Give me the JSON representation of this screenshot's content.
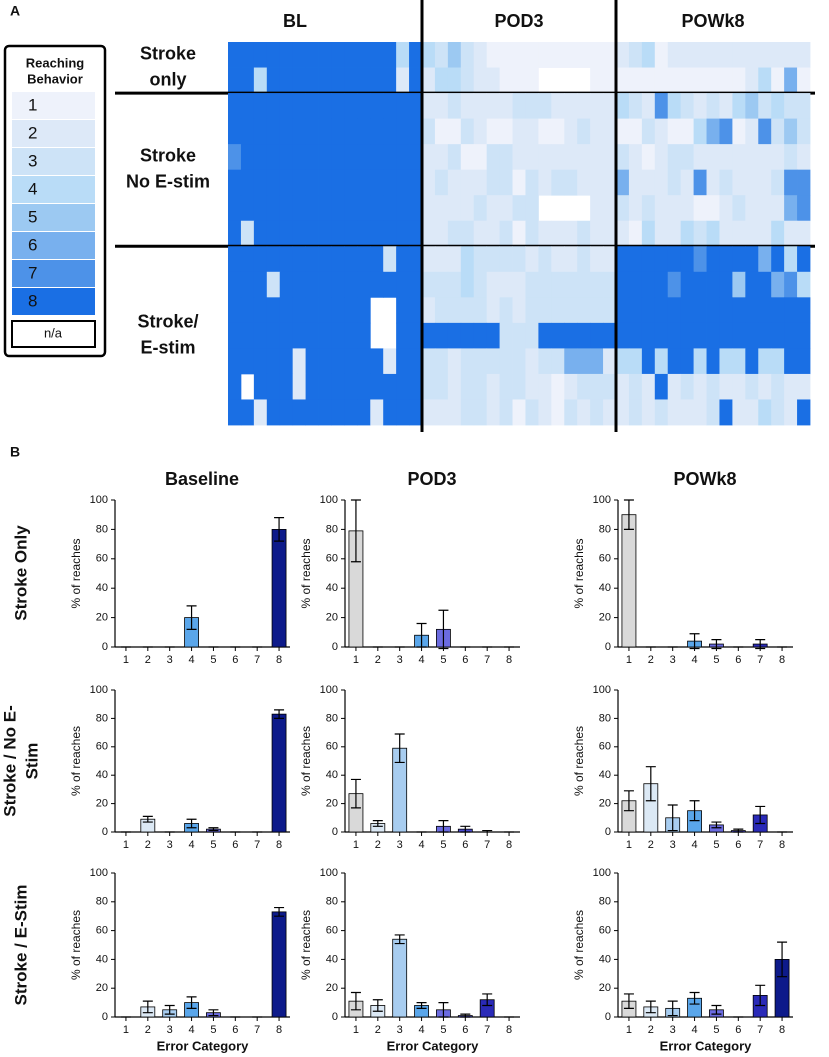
{
  "panel_labels": [
    "A",
    "B"
  ],
  "panel_b": {
    "columns": [
      "Baseline",
      "POD3",
      "POWk8"
    ],
    "rows": [
      [
        "Stroke Only"
      ],
      [
        "Stroke / No E-",
        "Stim"
      ],
      [
        "Stroke / E-Stim"
      ]
    ]
  },
  "chart_data": [
    {
      "type": "heatmap",
      "columns": [
        "BL",
        "POD3",
        "POWk8"
      ],
      "legend_title": [
        "Reaching",
        "Behavior"
      ],
      "levels": [
        1,
        2,
        3,
        4,
        5,
        6,
        7,
        8
      ],
      "colors": [
        "#eef2fb",
        "#dde9f8",
        "#cde3f7",
        "#b9dcf7",
        "#9cc9f2",
        "#78b0ee",
        "#4d92e8",
        "#1a6fe4"
      ],
      "na_label": "n/a",
      "groups": [
        {
          "label": [
            "Stroke",
            "only"
          ],
          "values": [
            [
              8,
              8,
              8,
              8,
              8,
              8,
              8,
              8,
              8,
              8,
              8,
              8,
              8,
              4,
              8,
              4,
              3,
              5,
              3,
              2,
              1,
              1,
              1,
              1,
              1,
              1,
              1,
              1,
              1,
              1,
              2,
              3,
              4,
              1,
              2,
              2,
              2,
              2,
              2,
              2,
              2,
              2,
              2,
              2,
              2
            ],
            [
              8,
              8,
              4,
              8,
              8,
              8,
              8,
              8,
              8,
              8,
              8,
              8,
              8,
              2,
              8,
              2,
              4,
              4,
              3,
              2,
              2,
              1,
              1,
              1,
              null,
              null,
              null,
              null,
              1,
              1,
              1,
              1,
              1,
              1,
              1,
              1,
              1,
              1,
              1,
              1,
              2,
              4,
              1,
              6,
              1
            ]
          ]
        },
        {
          "label": [
            "Stroke",
            "No E-stim"
          ],
          "values": [
            [
              8,
              8,
              8,
              8,
              8,
              8,
              8,
              8,
              8,
              8,
              8,
              8,
              8,
              8,
              8,
              2,
              2,
              3,
              2,
              2,
              2,
              2,
              3,
              3,
              3,
              2,
              2,
              2,
              2,
              2,
              4,
              3,
              2,
              7,
              4,
              3,
              2,
              3,
              2,
              4,
              5,
              3,
              4,
              3,
              3
            ],
            [
              8,
              8,
              8,
              8,
              8,
              8,
              8,
              8,
              8,
              8,
              8,
              8,
              8,
              8,
              8,
              3,
              1,
              1,
              3,
              2,
              1,
              1,
              2,
              2,
              1,
              1,
              2,
              3,
              2,
              2,
              1,
              1,
              3,
              2,
              1,
              1,
              4,
              6,
              7,
              1,
              2,
              7,
              3,
              5,
              3
            ],
            [
              7,
              8,
              8,
              8,
              8,
              8,
              8,
              8,
              8,
              8,
              8,
              8,
              8,
              8,
              8,
              2,
              2,
              3,
              1,
              1,
              3,
              3,
              2,
              2,
              2,
              2,
              2,
              2,
              2,
              2,
              3,
              2,
              1,
              2,
              3,
              3,
              2,
              2,
              2,
              2,
              2,
              2,
              2,
              3,
              2
            ],
            [
              8,
              8,
              8,
              8,
              8,
              8,
              8,
              8,
              8,
              8,
              8,
              8,
              8,
              8,
              8,
              2,
              3,
              2,
              2,
              2,
              3,
              3,
              1,
              3,
              2,
              3,
              3,
              2,
              2,
              2,
              6,
              2,
              2,
              2,
              3,
              2,
              7,
              2,
              3,
              2,
              2,
              2,
              3,
              7,
              7
            ],
            [
              8,
              8,
              8,
              8,
              8,
              8,
              8,
              8,
              8,
              8,
              8,
              8,
              8,
              8,
              8,
              2,
              2,
              2,
              2,
              3,
              2,
              2,
              3,
              3,
              null,
              null,
              null,
              null,
              2,
              2,
              3,
              2,
              3,
              2,
              2,
              2,
              1,
              1,
              2,
              3,
              2,
              2,
              2,
              6,
              7
            ],
            [
              8,
              3,
              8,
              8,
              8,
              8,
              8,
              8,
              8,
              8,
              8,
              8,
              8,
              8,
              8,
              2,
              2,
              3,
              3,
              2,
              2,
              3,
              1,
              3,
              2,
              2,
              2,
              3,
              2,
              2,
              2,
              1,
              4,
              2,
              2,
              4,
              3,
              4,
              2,
              2,
              2,
              2,
              4,
              2,
              2
            ]
          ]
        },
        {
          "label": [
            "Stroke/",
            "E-stim"
          ],
          "values": [
            [
              8,
              8,
              8,
              8,
              8,
              8,
              8,
              8,
              8,
              8,
              8,
              8,
              3,
              8,
              8,
              2,
              2,
              2,
              4,
              3,
              3,
              3,
              3,
              2,
              3,
              2,
              2,
              3,
              2,
              2,
              8,
              8,
              8,
              8,
              8,
              8,
              7,
              8,
              8,
              8,
              8,
              6,
              8,
              4,
              8
            ],
            [
              8,
              8,
              8,
              3,
              8,
              8,
              8,
              8,
              8,
              8,
              8,
              8,
              8,
              8,
              8,
              3,
              3,
              3,
              4,
              3,
              2,
              2,
              2,
              3,
              3,
              3,
              3,
              3,
              3,
              3,
              8,
              8,
              8,
              8,
              7,
              8,
              8,
              8,
              8,
              5,
              8,
              8,
              6,
              7,
              4
            ],
            [
              8,
              8,
              8,
              8,
              8,
              8,
              8,
              8,
              8,
              8,
              8,
              null,
              null,
              8,
              8,
              2,
              3,
              3,
              3,
              3,
              2,
              3,
              2,
              3,
              3,
              3,
              3,
              3,
              3,
              3,
              8,
              8,
              8,
              8,
              8,
              8,
              8,
              8,
              8,
              8,
              8,
              8,
              8,
              8,
              8
            ],
            [
              8,
              8,
              8,
              8,
              8,
              8,
              8,
              8,
              8,
              8,
              8,
              null,
              null,
              8,
              8,
              8,
              8,
              8,
              8,
              8,
              8,
              3,
              3,
              3,
              8,
              8,
              8,
              8,
              8,
              8,
              8,
              8,
              8,
              8,
              8,
              8,
              8,
              8,
              8,
              8,
              8,
              8,
              8,
              8,
              8
            ],
            [
              8,
              8,
              8,
              8,
              8,
              2,
              8,
              8,
              8,
              8,
              8,
              8,
              2,
              8,
              8,
              3,
              3,
              2,
              3,
              3,
              3,
              3,
              3,
              2,
              3,
              3,
              6,
              6,
              6,
              2,
              4,
              4,
              8,
              4,
              8,
              8,
              4,
              8,
              4,
              4,
              8,
              4,
              4,
              8,
              8
            ],
            [
              8,
              null,
              8,
              8,
              8,
              2,
              8,
              8,
              8,
              8,
              8,
              8,
              8,
              8,
              8,
              3,
              3,
              2,
              3,
              3,
              2,
              3,
              3,
              2,
              2,
              1,
              2,
              3,
              3,
              3,
              2,
              3,
              2,
              8,
              2,
              3,
              2,
              3,
              2,
              2,
              3,
              2,
              3,
              2,
              2
            ],
            [
              8,
              8,
              2,
              8,
              8,
              8,
              8,
              8,
              8,
              8,
              8,
              2,
              8,
              8,
              8,
              2,
              2,
              2,
              3,
              3,
              2,
              3,
              1,
              3,
              2,
              1,
              3,
              2,
              3,
              2,
              2,
              3,
              2,
              3,
              2,
              2,
              2,
              3,
              8,
              2,
              2,
              4,
              3,
              2,
              8
            ]
          ]
        }
      ]
    },
    {
      "type": "bar",
      "categories": [
        1,
        2,
        3,
        4,
        5,
        6,
        7,
        8
      ],
      "values": [
        0,
        0,
        0,
        20,
        0,
        0,
        0,
        80
      ],
      "errors": [
        0,
        0,
        0,
        8,
        0,
        0,
        0,
        8
      ],
      "colors": [
        "#d9d9d9",
        "#dce9f5",
        "#a8cdf0",
        "#5aa6ea",
        "#6b6be0",
        "#4a4ad0",
        "#2a2ab8",
        "#0d1a8a"
      ],
      "ylim": [
        0,
        100
      ],
      "yticks": [
        0,
        20,
        40,
        60,
        80,
        100
      ],
      "ylabel": "% of reaches"
    },
    {
      "type": "bar",
      "categories": [
        1,
        2,
        3,
        4,
        5,
        6,
        7,
        8
      ],
      "values": [
        79,
        0,
        0,
        8,
        12,
        0,
        0,
        0
      ],
      "errors": [
        21,
        0,
        0,
        8,
        13,
        0,
        0,
        0
      ],
      "colors": [
        "#d9d9d9",
        "#dce9f5",
        "#a8cdf0",
        "#5aa6ea",
        "#6b6be0",
        "#4a4ad0",
        "#2a2ab8",
        "#0d1a8a"
      ],
      "ylim": [
        0,
        100
      ],
      "yticks": [
        0,
        20,
        40,
        60,
        80,
        100
      ],
      "ylabel": "% of reaches"
    },
    {
      "type": "bar",
      "categories": [
        1,
        2,
        3,
        4,
        5,
        6,
        7,
        8
      ],
      "values": [
        90,
        0,
        0,
        4,
        2,
        0,
        2,
        0
      ],
      "errors": [
        10,
        0,
        0,
        5,
        3,
        0,
        3,
        0
      ],
      "colors": [
        "#d9d9d9",
        "#dce9f5",
        "#a8cdf0",
        "#5aa6ea",
        "#6b6be0",
        "#4a4ad0",
        "#2a2ab8",
        "#0d1a8a"
      ],
      "ylim": [
        0,
        100
      ],
      "yticks": [
        0,
        20,
        40,
        60,
        80,
        100
      ],
      "ylabel": "% of reaches"
    },
    {
      "type": "bar",
      "categories": [
        1,
        2,
        3,
        4,
        5,
        6,
        7,
        8
      ],
      "values": [
        0,
        9,
        0,
        6,
        2,
        0,
        0,
        83
      ],
      "errors": [
        0,
        2,
        0,
        3,
        1,
        0,
        0,
        3
      ],
      "colors": [
        "#d9d9d9",
        "#dce9f5",
        "#a8cdf0",
        "#5aa6ea",
        "#6b6be0",
        "#4a4ad0",
        "#2a2ab8",
        "#0d1a8a"
      ],
      "ylim": [
        0,
        100
      ],
      "yticks": [
        0,
        20,
        40,
        60,
        80,
        100
      ],
      "ylabel": "% of reaches"
    },
    {
      "type": "bar",
      "categories": [
        1,
        2,
        3,
        4,
        5,
        6,
        7,
        8
      ],
      "values": [
        27,
        6,
        59,
        0,
        4,
        2,
        0,
        0
      ],
      "errors": [
        10,
        2,
        10,
        0,
        4,
        2,
        1,
        0
      ],
      "colors": [
        "#d9d9d9",
        "#dce9f5",
        "#a8cdf0",
        "#5aa6ea",
        "#6b6be0",
        "#4a4ad0",
        "#2a2ab8",
        "#0d1a8a"
      ],
      "ylim": [
        0,
        100
      ],
      "yticks": [
        0,
        20,
        40,
        60,
        80,
        100
      ],
      "ylabel": "% of reaches"
    },
    {
      "type": "bar",
      "categories": [
        1,
        2,
        3,
        4,
        5,
        6,
        7,
        8
      ],
      "values": [
        22,
        34,
        10,
        15,
        5,
        1,
        12,
        0
      ],
      "errors": [
        7,
        12,
        9,
        7,
        2,
        1,
        6,
        0
      ],
      "colors": [
        "#d9d9d9",
        "#dce9f5",
        "#a8cdf0",
        "#5aa6ea",
        "#6b6be0",
        "#4a4ad0",
        "#2a2ab8",
        "#0d1a8a"
      ],
      "ylim": [
        0,
        100
      ],
      "yticks": [
        0,
        20,
        40,
        60,
        80,
        100
      ],
      "ylabel": "% of reaches"
    },
    {
      "type": "bar",
      "categories": [
        1,
        2,
        3,
        4,
        5,
        6,
        7,
        8
      ],
      "values": [
        0,
        7,
        5,
        10,
        3,
        0,
        0,
        73
      ],
      "errors": [
        0,
        4,
        3,
        4,
        2,
        0,
        0,
        3
      ],
      "colors": [
        "#d9d9d9",
        "#dce9f5",
        "#a8cdf0",
        "#5aa6ea",
        "#6b6be0",
        "#4a4ad0",
        "#2a2ab8",
        "#0d1a8a"
      ],
      "ylim": [
        0,
        100
      ],
      "yticks": [
        0,
        20,
        40,
        60,
        80,
        100
      ],
      "ylabel": "% of reaches",
      "xlabel": "Error Category"
    },
    {
      "type": "bar",
      "categories": [
        1,
        2,
        3,
        4,
        5,
        6,
        7,
        8
      ],
      "values": [
        11,
        8,
        54,
        8,
        5,
        1,
        12,
        0
      ],
      "errors": [
        6,
        4,
        3,
        2,
        5,
        1,
        4,
        0
      ],
      "colors": [
        "#d9d9d9",
        "#dce9f5",
        "#a8cdf0",
        "#5aa6ea",
        "#6b6be0",
        "#4a4ad0",
        "#2a2ab8",
        "#0d1a8a"
      ],
      "ylim": [
        0,
        100
      ],
      "yticks": [
        0,
        20,
        40,
        60,
        80,
        100
      ],
      "ylabel": "% of reaches",
      "xlabel": "Error Category"
    },
    {
      "type": "bar",
      "categories": [
        1,
        2,
        3,
        4,
        5,
        6,
        7,
        8
      ],
      "values": [
        11,
        7,
        6,
        13,
        5,
        0,
        15,
        40
      ],
      "errors": [
        5,
        4,
        5,
        4,
        3,
        0,
        7,
        12
      ],
      "colors": [
        "#d9d9d9",
        "#dce9f5",
        "#a8cdf0",
        "#5aa6ea",
        "#6b6be0",
        "#4a4ad0",
        "#2a2ab8",
        "#0d1a8a"
      ],
      "ylim": [
        0,
        100
      ],
      "yticks": [
        0,
        20,
        40,
        60,
        80,
        100
      ],
      "ylabel": "% of reaches",
      "xlabel": "Error Category"
    }
  ]
}
